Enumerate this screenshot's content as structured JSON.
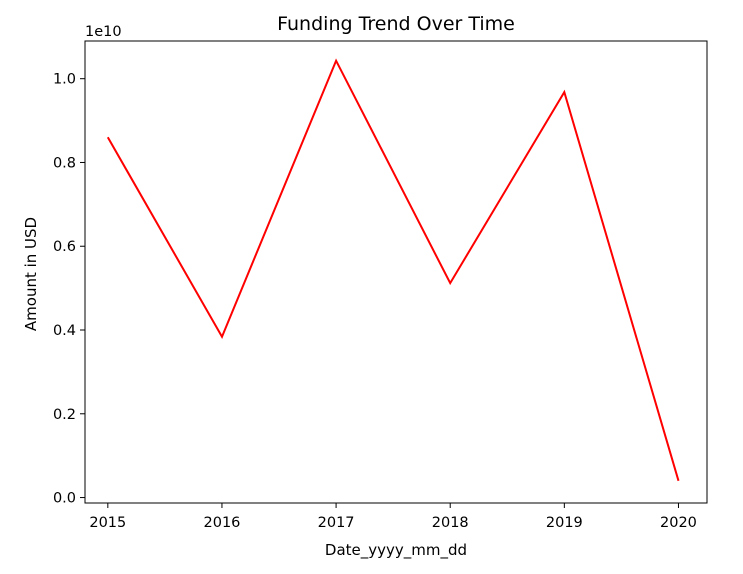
{
  "chart_data": {
    "type": "line",
    "title": "Funding Trend Over Time",
    "xlabel": "Date_yyyy_mm_dd",
    "ylabel": "Amount in USD",
    "y_offset_label": "1e10",
    "x": [
      2015,
      2016,
      2017,
      2018,
      2019,
      2020
    ],
    "x_ticks": [
      "2015",
      "2016",
      "2017",
      "2018",
      "2019",
      "2020"
    ],
    "xlim": [
      2014.8,
      2020.25
    ],
    "series": [
      {
        "values": [
          8.6,
          3.84,
          10.43,
          5.12,
          9.68,
          0.4
        ],
        "color": "#ff0000"
      }
    ],
    "y_ticks": [
      0.0,
      0.2,
      0.4,
      0.6,
      0.8,
      1.0
    ],
    "y_tick_labels": [
      "0.0",
      "0.2",
      "0.4",
      "0.6",
      "0.8",
      "1.0"
    ],
    "y_unit_scale": 10,
    "ylim": [
      -0.13,
      10.9
    ],
    "grid": false
  }
}
